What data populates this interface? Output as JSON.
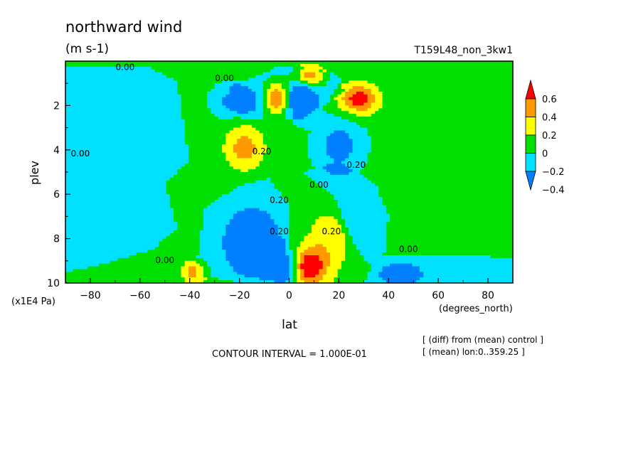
{
  "chart_data": {
    "type": "heatmap",
    "title": "northward wind",
    "units": "(m s-1)",
    "run_label": "T159L48_non_3kw1",
    "xlabel": "lat",
    "x_units": "(degrees_north)",
    "ylabel": "plev",
    "y_units": "(x1E4 Pa)",
    "xlim": [
      -90,
      90
    ],
    "ylim": [
      0,
      10
    ],
    "y_inverted": true,
    "x_ticks": [
      -80,
      -60,
      -40,
      -20,
      0,
      20,
      40,
      60,
      80
    ],
    "y_ticks": [
      2,
      4,
      6,
      8,
      10
    ],
    "contour_interval_text": "CONTOUR INTERVAL = 1.000E-01",
    "notes": [
      "[ (diff) from (mean) control ]",
      "[ (mean) lon:0..359.25 ]"
    ],
    "contour_labels": [
      {
        "text": "0.00",
        "lat": -66,
        "plev": 0.4
      },
      {
        "text": "0.00",
        "lat": -26,
        "plev": 0.9
      },
      {
        "text": "0.00",
        "lat": -84,
        "plev": 4.3
      },
      {
        "text": "0.20",
        "lat": -11,
        "plev": 4.2
      },
      {
        "text": "0.20",
        "lat": 27,
        "plev": 4.8
      },
      {
        "text": "0.00",
        "lat": 12,
        "plev": 5.7
      },
      {
        "text": "0.20",
        "lat": -4,
        "plev": 6.4
      },
      {
        "text": "0.20",
        "lat": -4,
        "plev": 7.8
      },
      {
        "text": "0.20",
        "lat": 17,
        "plev": 7.8
      },
      {
        "text": "0.00",
        "lat": 48,
        "plev": 8.6
      },
      {
        "text": "0.00",
        "lat": -50,
        "plev": 9.1
      }
    ],
    "colorbar": {
      "levels": [
        -0.4,
        -0.2,
        0,
        0.2,
        0.4,
        0.6
      ],
      "colors": [
        "#0080ff",
        "#00e0ff",
        "#00e000",
        "#ffff00",
        "#ff9900",
        "#ff0000"
      ],
      "labels": [
        "0.6",
        "0.4",
        "0.2",
        "0",
        "−0.2",
        "−0.4"
      ]
    },
    "field_blobs": [
      {
        "lat": -22,
        "plev": 1.8,
        "rx": 8,
        "ry": 0.7,
        "amp": -0.35
      },
      {
        "lat": -5,
        "plev": 1.7,
        "rx": 5,
        "ry": 0.8,
        "amp": 0.65
      },
      {
        "lat": 5,
        "plev": 1.7,
        "rx": 5,
        "ry": 0.8,
        "amp": -0.65
      },
      {
        "lat": 8,
        "plev": 0.7,
        "rx": 6,
        "ry": 0.5,
        "amp": 0.65
      },
      {
        "lat": 28,
        "plev": 1.7,
        "rx": 8,
        "ry": 0.7,
        "amp": 0.65
      },
      {
        "lat": -18,
        "plev": 3.9,
        "rx": 8,
        "ry": 1.0,
        "amp": 0.45
      },
      {
        "lat": 20,
        "plev": 3.8,
        "rx": 9,
        "ry": 1.2,
        "amp": -0.35
      },
      {
        "lat": -15,
        "plev": 8.2,
        "rx": 11,
        "ry": 1.5,
        "amp": -0.3
      },
      {
        "lat": -3,
        "plev": 9.4,
        "rx": 5,
        "ry": 0.8,
        "amp": -0.55
      },
      {
        "lat": 15,
        "plev": 8.4,
        "rx": 9,
        "ry": 1.7,
        "amp": 0.3
      },
      {
        "lat": 8,
        "plev": 9.3,
        "rx": 6,
        "ry": 0.8,
        "amp": 0.65
      },
      {
        "lat": -38,
        "plev": 9.5,
        "rx": 5,
        "ry": 0.5,
        "amp": 0.5
      },
      {
        "lat": 45,
        "plev": 9.6,
        "rx": 8,
        "ry": 0.5,
        "amp": -0.3
      }
    ],
    "field_regions": [
      {
        "value": -0.1,
        "points": [
          [
            -90,
            0.2
          ],
          [
            -58,
            0.2
          ],
          [
            -45,
            0.9
          ],
          [
            -42,
            3.2
          ],
          [
            -40,
            4.5
          ],
          [
            -50,
            5.5
          ],
          [
            -45,
            7.5
          ],
          [
            -55,
            8.5
          ],
          [
            -80,
            9.3
          ],
          [
            -90,
            9.5
          ]
        ]
      },
      {
        "value": -0.1,
        "points": [
          [
            5,
            5
          ],
          [
            20,
            4.5
          ],
          [
            35,
            5.6
          ],
          [
            40,
            7
          ],
          [
            38,
            8.8
          ],
          [
            32,
            9.2
          ],
          [
            25,
            8
          ],
          [
            18,
            6
          ]
        ]
      },
      {
        "value": -0.1,
        "points": [
          [
            -34,
            6.6
          ],
          [
            -20,
            5.6
          ],
          [
            -8,
            5.3
          ],
          [
            0,
            6.5
          ],
          [
            -2,
            9.8
          ],
          [
            -20,
            9.9
          ],
          [
            -38,
            9.7
          ]
        ]
      },
      {
        "value": -0.1,
        "points": [
          [
            35,
            8.8
          ],
          [
            70,
            8.7
          ],
          [
            90,
            8.9
          ],
          [
            90,
            10
          ],
          [
            30,
            10
          ]
        ]
      },
      {
        "value": -0.1,
        "points": [
          [
            -5,
            0.3
          ],
          [
            8,
            0.3
          ],
          [
            20,
            0.6
          ],
          [
            22,
            1.4
          ],
          [
            5,
            2.6
          ],
          [
            -20,
            2.6
          ],
          [
            -25,
            1.2
          ]
        ]
      }
    ]
  }
}
